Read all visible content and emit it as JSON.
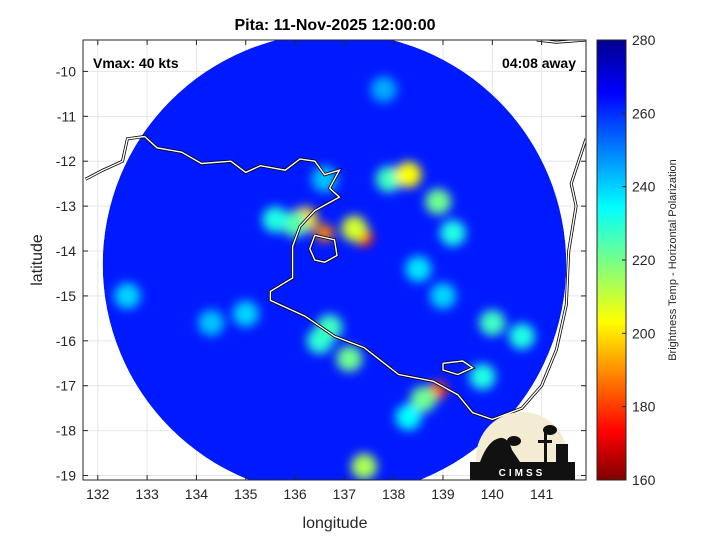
{
  "chart_data": {
    "type": "heatmap",
    "title": "Pita: 11-Nov-2025 12:00:00",
    "xlabel": "longitude",
    "ylabel": "latitude",
    "xlim": [
      131.7,
      141.9
    ],
    "ylim": [
      -19.1,
      -9.3
    ],
    "xticks": [
      132,
      133,
      134,
      135,
      136,
      137,
      138,
      139,
      140,
      141
    ],
    "yticks": [
      -10,
      -11,
      -12,
      -13,
      -14,
      -15,
      -16,
      -17,
      -18,
      -19
    ],
    "colorbar": {
      "label": "Brightness Temp - Horizontal Polarization",
      "min": 160,
      "max": 280,
      "ticks": [
        160,
        180,
        200,
        220,
        240,
        260,
        280
      ],
      "colormap": "jet"
    },
    "annotations": {
      "vmax": "Vmax: 40 kts",
      "time_away": "04:08 away"
    },
    "swath": {
      "center": [
        136.8,
        -14.3
      ],
      "radius_deg": 4.7,
      "background_value": 262
    },
    "features": [
      {
        "lon": 137.4,
        "lat": -13.7,
        "value": 178
      },
      {
        "lon": 137.2,
        "lat": -13.5,
        "value": 210
      },
      {
        "lon": 136.6,
        "lat": -13.6,
        "value": 190
      },
      {
        "lon": 136.2,
        "lat": -13.3,
        "value": 200
      },
      {
        "lon": 136.0,
        "lat": -13.4,
        "value": 225
      },
      {
        "lon": 135.6,
        "lat": -13.3,
        "value": 232
      },
      {
        "lon": 137.9,
        "lat": -12.4,
        "value": 228
      },
      {
        "lon": 138.3,
        "lat": -12.3,
        "value": 205
      },
      {
        "lon": 138.9,
        "lat": -12.9,
        "value": 222
      },
      {
        "lon": 139.2,
        "lat": -13.6,
        "value": 232
      },
      {
        "lon": 138.5,
        "lat": -14.4,
        "value": 238
      },
      {
        "lon": 139.0,
        "lat": -15.0,
        "value": 240
      },
      {
        "lon": 140.0,
        "lat": -15.6,
        "value": 228
      },
      {
        "lon": 140.6,
        "lat": -15.9,
        "value": 232
      },
      {
        "lon": 137.1,
        "lat": -16.4,
        "value": 222
      },
      {
        "lon": 136.5,
        "lat": -16.0,
        "value": 230
      },
      {
        "lon": 136.7,
        "lat": -15.7,
        "value": 228
      },
      {
        "lon": 138.9,
        "lat": -17.1,
        "value": 182
      },
      {
        "lon": 138.6,
        "lat": -17.3,
        "value": 222
      },
      {
        "lon": 138.3,
        "lat": -17.7,
        "value": 235
      },
      {
        "lon": 137.4,
        "lat": -18.8,
        "value": 215
      },
      {
        "lon": 139.8,
        "lat": -16.8,
        "value": 232
      },
      {
        "lon": 135.0,
        "lat": -15.4,
        "value": 240
      },
      {
        "lon": 134.3,
        "lat": -15.6,
        "value": 242
      },
      {
        "lon": 136.6,
        "lat": -12.4,
        "value": 242
      },
      {
        "lon": 137.8,
        "lat": -10.4,
        "value": 245
      },
      {
        "lon": 132.6,
        "lat": -15.0,
        "value": 240
      }
    ],
    "coastline": [
      [
        [
          131.75,
          -12.4
        ],
        [
          132.1,
          -12.2
        ],
        [
          132.5,
          -12.0
        ],
        [
          132.6,
          -11.5
        ],
        [
          132.95,
          -11.45
        ],
        [
          133.2,
          -11.7
        ],
        [
          133.7,
          -11.8
        ],
        [
          134.1,
          -12.05
        ],
        [
          134.7,
          -12.0
        ],
        [
          135.0,
          -12.25
        ],
        [
          135.3,
          -12.1
        ],
        [
          135.8,
          -12.2
        ],
        [
          136.1,
          -11.95
        ],
        [
          136.4,
          -12.0
        ],
        [
          136.6,
          -12.3
        ],
        [
          136.9,
          -12.2
        ],
        [
          136.7,
          -12.6
        ],
        [
          136.9,
          -12.8
        ],
        [
          136.4,
          -13.1
        ],
        [
          136.1,
          -13.45
        ],
        [
          135.95,
          -13.9
        ],
        [
          135.95,
          -14.6
        ],
        [
          135.5,
          -14.9
        ],
        [
          135.5,
          -15.1
        ],
        [
          136.2,
          -15.45
        ],
        [
          136.8,
          -15.9
        ],
        [
          137.4,
          -16.15
        ],
        [
          138.1,
          -16.75
        ],
        [
          138.8,
          -16.9
        ],
        [
          139.3,
          -17.2
        ],
        [
          139.6,
          -17.6
        ],
        [
          140.0,
          -17.75
        ],
        [
          140.6,
          -17.5
        ],
        [
          141.0,
          -17.0
        ],
        [
          141.3,
          -16.2
        ],
        [
          141.5,
          -15.2
        ],
        [
          141.55,
          -14.0
        ],
        [
          141.7,
          -13.0
        ],
        [
          141.6,
          -12.5
        ],
        [
          141.75,
          -12.0
        ],
        [
          141.9,
          -11.5
        ]
      ],
      [
        [
          136.4,
          -13.65
        ],
        [
          136.8,
          -13.75
        ],
        [
          136.85,
          -14.1
        ],
        [
          136.6,
          -14.25
        ],
        [
          136.4,
          -14.2
        ],
        [
          136.3,
          -13.95
        ],
        [
          136.4,
          -13.65
        ]
      ],
      [
        [
          139.0,
          -16.5
        ],
        [
          139.4,
          -16.45
        ],
        [
          139.6,
          -16.6
        ],
        [
          139.3,
          -16.75
        ],
        [
          139.0,
          -16.65
        ],
        [
          139.0,
          -16.5
        ]
      ],
      [
        [
          140.9,
          -9.3
        ],
        [
          141.3,
          -9.35
        ],
        [
          141.9,
          -9.3
        ]
      ]
    ]
  }
}
